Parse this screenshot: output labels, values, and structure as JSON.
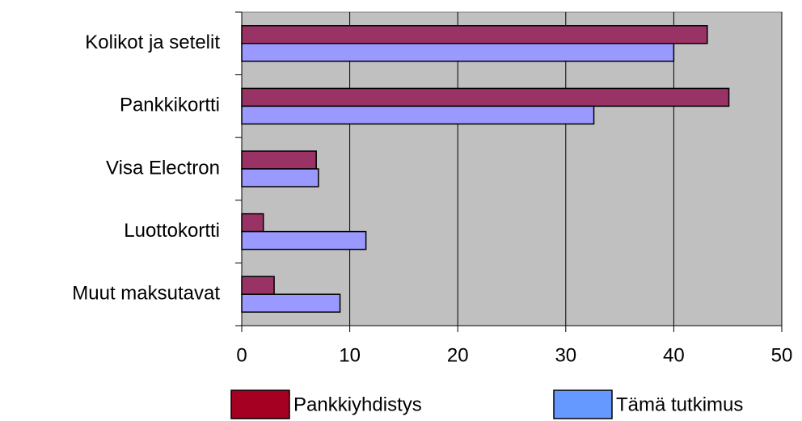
{
  "chart_data": {
    "type": "barh",
    "categories": [
      "Kolikot ja setelit",
      "Pankkikortti",
      "Visa Electron",
      "Luottokortti",
      "Muut maksutavat"
    ],
    "series": [
      {
        "name": "Pankkiyhdistys",
        "color": "#993366",
        "legend_color": "#a50021",
        "values": [
          43.1,
          45.1,
          6.9,
          2.0,
          3.0
        ]
      },
      {
        "name": "Tämä tutkimus",
        "color": "#9999ff",
        "legend_color": "#6699ff",
        "values": [
          40,
          32.6,
          7.1,
          11.5,
          9.1
        ]
      }
    ],
    "xlim": [
      0,
      50
    ],
    "xticks": [
      0,
      10,
      20,
      30,
      40,
      50
    ],
    "grid": true,
    "legend": "bottom"
  }
}
